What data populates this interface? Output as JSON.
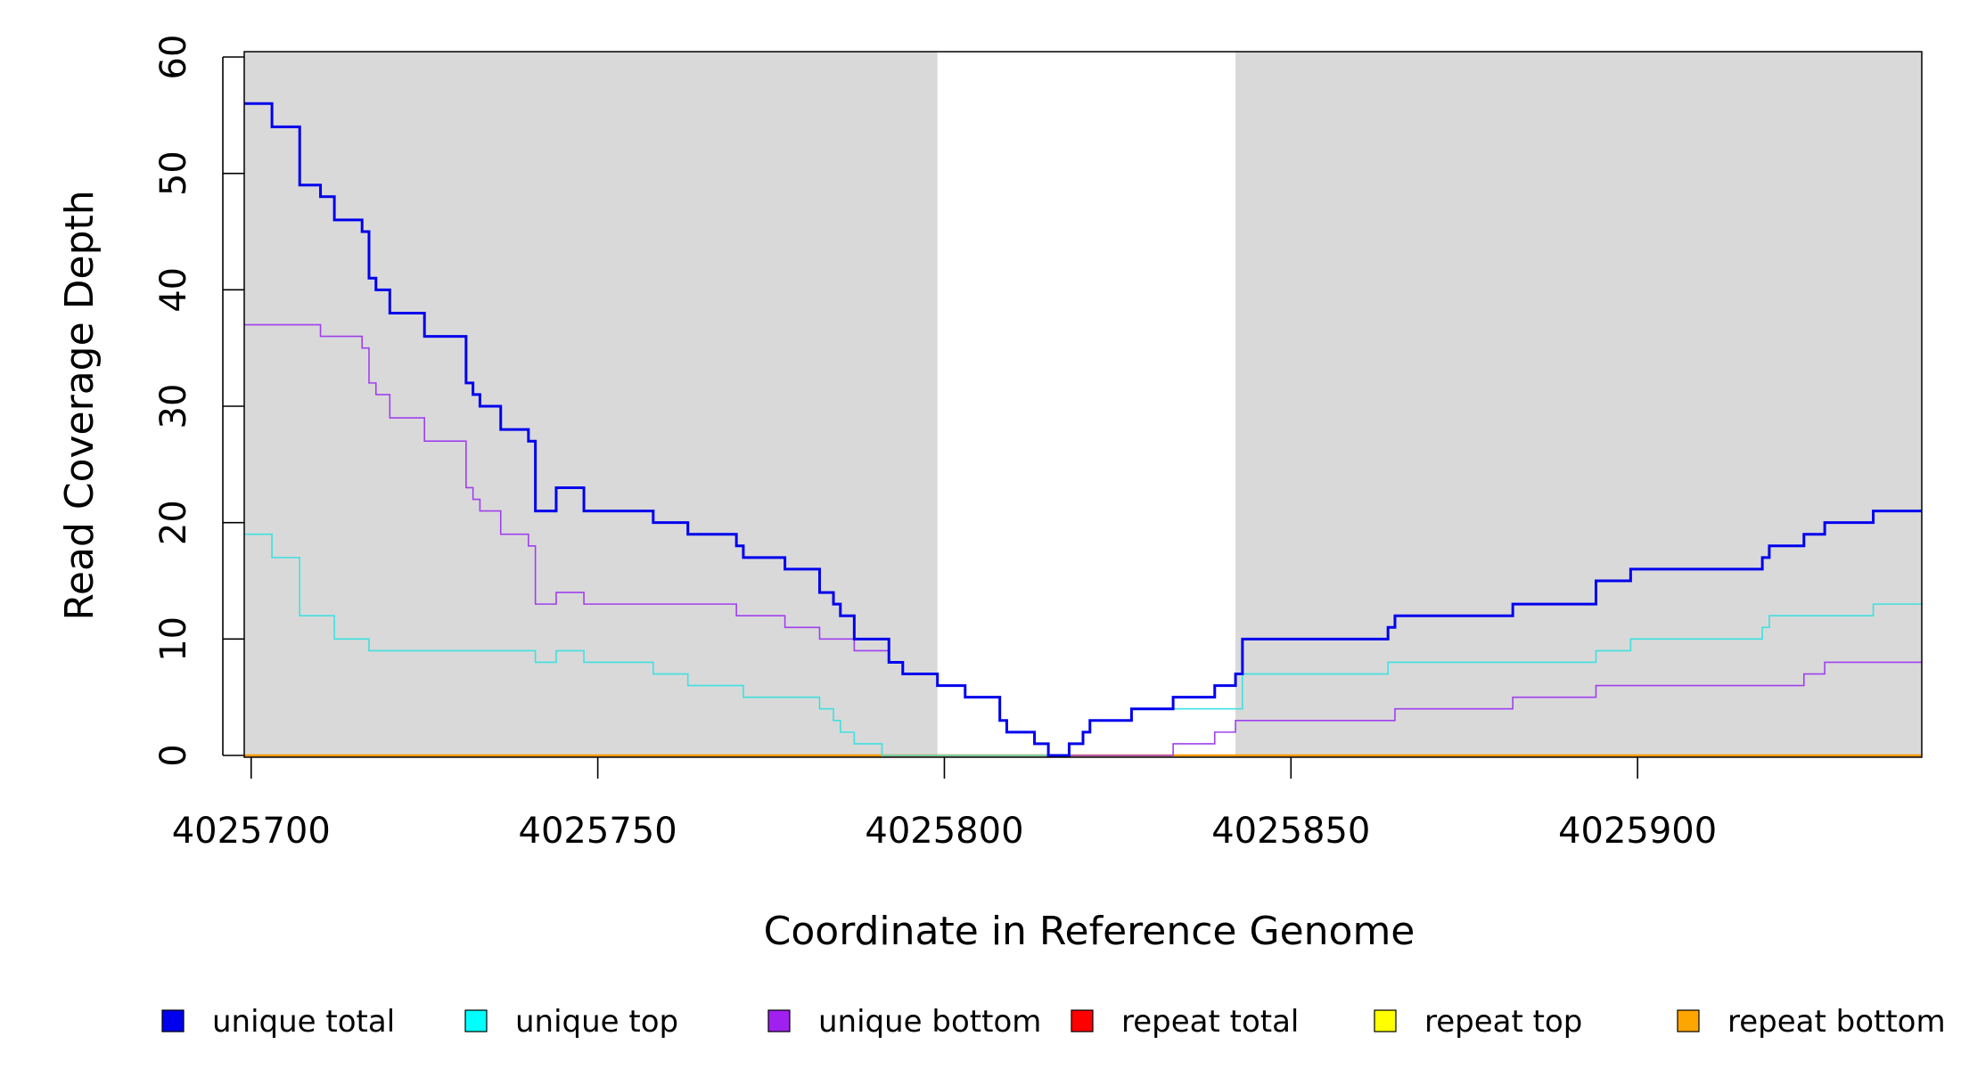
{
  "chart_data": {
    "type": "line",
    "xlabel": "Coordinate in Reference Genome",
    "ylabel": "Read Coverage Depth",
    "xlim": [
      4025699,
      4025941
    ],
    "ylim": [
      0,
      61
    ],
    "x_ticks": [
      4025700,
      4025750,
      4025800,
      4025850,
      4025900
    ],
    "y_ticks": [
      0,
      10,
      20,
      30,
      40,
      50,
      60
    ],
    "x_tick_labels": [
      "4025700",
      "4025750",
      "4025800",
      "4025850",
      "4025900"
    ],
    "y_tick_labels": [
      "0",
      "10",
      "20",
      "30",
      "40",
      "50",
      "60"
    ],
    "shaded_regions": [
      {
        "x_start": 4025699,
        "x_end": 4025799,
        "color": "#d9d9d9"
      },
      {
        "x_start": 4025842,
        "x_end": 4025941,
        "color": "#d9d9d9"
      }
    ],
    "grid": false,
    "legend_position": "bottom",
    "series": [
      {
        "name": "unique total",
        "color": "#0000ee",
        "legend_color": "#0000ee",
        "line_width": 3,
        "step": true,
        "points": [
          [
            4025699,
            56
          ],
          [
            4025703,
            54
          ],
          [
            4025707,
            49
          ],
          [
            4025710,
            48
          ],
          [
            4025712,
            46
          ],
          [
            4025716,
            45
          ],
          [
            4025717,
            41
          ],
          [
            4025718,
            40
          ],
          [
            4025720,
            38
          ],
          [
            4025725,
            36
          ],
          [
            4025731,
            32
          ],
          [
            4025732,
            31
          ],
          [
            4025733,
            30
          ],
          [
            4025736,
            28
          ],
          [
            4025740,
            27
          ],
          [
            4025741,
            21
          ],
          [
            4025744,
            23
          ],
          [
            4025748,
            21
          ],
          [
            4025758,
            20
          ],
          [
            4025763,
            19
          ],
          [
            4025770,
            18
          ],
          [
            4025771,
            17
          ],
          [
            4025777,
            16
          ],
          [
            4025782,
            14
          ],
          [
            4025784,
            13
          ],
          [
            4025785,
            12
          ],
          [
            4025787,
            10
          ],
          [
            4025792,
            8
          ],
          [
            4025794,
            7
          ],
          [
            4025799,
            6
          ],
          [
            4025803,
            5
          ],
          [
            4025808,
            3
          ],
          [
            4025809,
            2
          ],
          [
            4025813,
            1
          ],
          [
            4025815,
            0
          ],
          [
            4025818,
            1
          ],
          [
            4025820,
            2
          ],
          [
            4025821,
            3
          ],
          [
            4025827,
            4
          ],
          [
            4025833,
            5
          ],
          [
            4025839,
            6
          ],
          [
            4025842,
            7
          ],
          [
            4025843,
            10
          ],
          [
            4025864,
            11
          ],
          [
            4025865,
            12
          ],
          [
            4025882,
            13
          ],
          [
            4025894,
            15
          ],
          [
            4025899,
            16
          ],
          [
            4025918,
            17
          ],
          [
            4025919,
            18
          ],
          [
            4025924,
            19
          ],
          [
            4025927,
            20
          ],
          [
            4025934,
            21
          ],
          [
            4025941,
            21
          ]
        ]
      },
      {
        "name": "unique top",
        "color": "#40e0e0",
        "legend_color": "#00ffff",
        "line_width": 1.6,
        "step": true,
        "points": [
          [
            4025699,
            19
          ],
          [
            4025703,
            17
          ],
          [
            4025707,
            12
          ],
          [
            4025712,
            10
          ],
          [
            4025717,
            9
          ],
          [
            4025741,
            8
          ],
          [
            4025744,
            9
          ],
          [
            4025748,
            8
          ],
          [
            4025758,
            7
          ],
          [
            4025763,
            6
          ],
          [
            4025771,
            5
          ],
          [
            4025782,
            4
          ],
          [
            4025784,
            3
          ],
          [
            4025785,
            2
          ],
          [
            4025787,
            1
          ],
          [
            4025791,
            0
          ],
          [
            4025818,
            1
          ],
          [
            4025820,
            2
          ],
          [
            4025821,
            3
          ],
          [
            4025827,
            4
          ],
          [
            4025843,
            7
          ],
          [
            4025864,
            8
          ],
          [
            4025894,
            9
          ],
          [
            4025899,
            10
          ],
          [
            4025918,
            11
          ],
          [
            4025919,
            12
          ],
          [
            4025934,
            13
          ],
          [
            4025941,
            13
          ]
        ]
      },
      {
        "name": "unique bottom",
        "color": "#a040ee",
        "legend_color": "#a020f0",
        "line_width": 1.6,
        "step": true,
        "points": [
          [
            4025699,
            37
          ],
          [
            4025710,
            36
          ],
          [
            4025716,
            35
          ],
          [
            4025717,
            32
          ],
          [
            4025718,
            31
          ],
          [
            4025720,
            29
          ],
          [
            4025725,
            27
          ],
          [
            4025731,
            23
          ],
          [
            4025732,
            22
          ],
          [
            4025733,
            21
          ],
          [
            4025736,
            19
          ],
          [
            4025740,
            18
          ],
          [
            4025741,
            13
          ],
          [
            4025744,
            14
          ],
          [
            4025748,
            13
          ],
          [
            4025770,
            12
          ],
          [
            4025777,
            11
          ],
          [
            4025782,
            10
          ],
          [
            4025787,
            9
          ],
          [
            4025792,
            8
          ],
          [
            4025794,
            7
          ],
          [
            4025799,
            6
          ],
          [
            4025803,
            5
          ],
          [
            4025808,
            3
          ],
          [
            4025809,
            2
          ],
          [
            4025813,
            1
          ],
          [
            4025815,
            0
          ],
          [
            4025833,
            1
          ],
          [
            4025839,
            2
          ],
          [
            4025842,
            3
          ],
          [
            4025865,
            4
          ],
          [
            4025882,
            5
          ],
          [
            4025894,
            6
          ],
          [
            4025924,
            7
          ],
          [
            4025927,
            8
          ],
          [
            4025941,
            8
          ]
        ]
      },
      {
        "name": "repeat total",
        "color": "#ff0000",
        "legend_color": "#ff0000",
        "line_width": 2,
        "step": true,
        "points": [
          [
            4025699,
            0
          ],
          [
            4025941,
            0
          ]
        ]
      },
      {
        "name": "repeat top",
        "color": "#ffff00",
        "legend_color": "#ffff00",
        "line_width": 2,
        "step": true,
        "points": [
          [
            4025699,
            0
          ],
          [
            4025941,
            0
          ]
        ]
      },
      {
        "name": "repeat bottom",
        "color": "#ff9900",
        "legend_color": "#ffa500",
        "line_width": 2.5,
        "step": true,
        "points": [
          [
            4025699,
            0
          ],
          [
            4025941,
            0
          ]
        ]
      }
    ]
  }
}
